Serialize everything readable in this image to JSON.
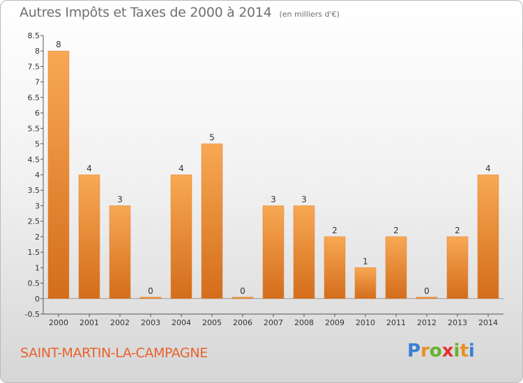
{
  "chart_data": {
    "type": "bar",
    "title": "Autres Impôts et Taxes de 2000 à 2014",
    "subtitle": "(en milliers d'€)",
    "categories": [
      "2000",
      "2001",
      "2002",
      "2003",
      "2004",
      "2005",
      "2006",
      "2007",
      "2008",
      "2009",
      "2010",
      "2011",
      "2012",
      "2013",
      "2014"
    ],
    "values": [
      8,
      4,
      3,
      0,
      4,
      5,
      0,
      3,
      3,
      2,
      1,
      2,
      0,
      2,
      4
    ],
    "data_labels": [
      "8",
      "4",
      "3",
      "0",
      "4",
      "5",
      "0",
      "3",
      "3",
      "2",
      "1",
      "2",
      "0",
      "2",
      "4"
    ],
    "ylim": [
      -0.5,
      8.5
    ],
    "yticks": [
      -0.5,
      0,
      0.5,
      1,
      1.5,
      2,
      2.5,
      3,
      3.5,
      4,
      4.5,
      5,
      5.5,
      6,
      6.5,
      7,
      7.5,
      8,
      8.5
    ],
    "ytick_labels": [
      "-0.5",
      "0",
      "0.5",
      "1",
      "1.5",
      "2",
      "2.5",
      "3",
      "3.5",
      "4",
      "4.5",
      "5",
      "5.5",
      "6",
      "6.5",
      "7",
      "7.5",
      "8",
      "8.5"
    ],
    "grid": false,
    "bar_color": "#f0923a"
  },
  "footer": {
    "commune": "SAINT-MARTIN-LA-CAMPAGNE",
    "logo_text": "Proxiti"
  }
}
